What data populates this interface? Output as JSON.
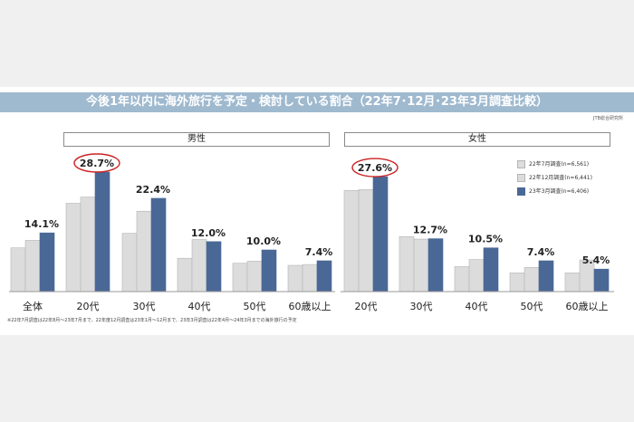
{
  "title": "今後1年以内に海外旅行を予定・検討している割合（22年7･12月･23年3月調査比較）",
  "source": "JTB総合研究所",
  "panels": [
    {
      "label": "男性"
    },
    {
      "label": "女性"
    }
  ],
  "legend": [
    {
      "label": "22年7月調査(n=6,561)",
      "color": "#dcdcdc"
    },
    {
      "label": "22年12月調査(n=6,441)",
      "color": "#dcdcdc"
    },
    {
      "label": "23年3月調査(n=6,406)",
      "color": "#4a6896"
    }
  ],
  "note": "※22年7月調査は22年8月～23年7月まで、22年度12月調査は23年1月～12月まで、23年3月調査は22年4月～24年3月までの海外旅行の予定",
  "colors": {
    "old": "#dcdcdc",
    "old_border": "#b5b5b5",
    "latest": "#4a6896",
    "highlight": "#cc2222"
  },
  "chart_data": {
    "type": "bar",
    "series": [
      {
        "name": "22年7月調査(n=6,561)"
      },
      {
        "name": "22年12月調査(n=6,441)"
      },
      {
        "name": "23年3月調査(n=6,406)"
      }
    ],
    "groups": [
      {
        "panel": 0,
        "category": "全体",
        "values": [
          10.5,
          12.3,
          14.1
        ],
        "label": "14.1%"
      },
      {
        "panel": 0,
        "category": "20代",
        "values": [
          21.2,
          22.7,
          28.7
        ],
        "label": "28.7%",
        "highlight": true
      },
      {
        "panel": 0,
        "category": "30代",
        "values": [
          14.0,
          19.3,
          22.4
        ],
        "label": "22.4%"
      },
      {
        "panel": 0,
        "category": "40代",
        "values": [
          8.0,
          12.5,
          12.0
        ],
        "label": "12.0%"
      },
      {
        "panel": 0,
        "category": "50代",
        "values": [
          6.8,
          7.3,
          10.0
        ],
        "label": "10.0%"
      },
      {
        "panel": 0,
        "category": "60歳以上",
        "values": [
          6.3,
          6.5,
          7.4
        ],
        "label": "7.4%"
      },
      {
        "panel": 1,
        "category": "20代",
        "values": [
          24.3,
          24.5,
          27.6
        ],
        "label": "27.6%",
        "highlight": true
      },
      {
        "panel": 1,
        "category": "30代",
        "values": [
          13.2,
          12.6,
          12.7
        ],
        "label": "12.7%"
      },
      {
        "panel": 1,
        "category": "40代",
        "values": [
          6.0,
          7.7,
          10.5
        ],
        "label": "10.5%"
      },
      {
        "panel": 1,
        "category": "50代",
        "values": [
          4.5,
          5.8,
          7.4
        ],
        "label": "7.4%"
      },
      {
        "panel": 1,
        "category": "60歳以上",
        "values": [
          4.5,
          7.6,
          5.4
        ],
        "label": "5.4%"
      }
    ],
    "ylim": [
      0,
      30
    ]
  }
}
